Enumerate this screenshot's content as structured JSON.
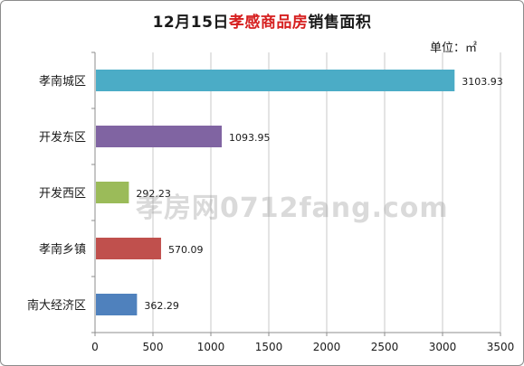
{
  "title_prefix": "12月15日",
  "title_highlight": "孝感商品房",
  "title_suffix": "销售面积",
  "unit": "单位：㎡",
  "watermark": "孝房网0712fang.com",
  "colors": {
    "grid": "#c9c9c9",
    "axis": "#8c8c8c",
    "title_highlight": "#d61f1f"
  },
  "chart_data": {
    "type": "bar",
    "orientation": "horizontal",
    "categories": [
      "孝南城区",
      "开发东区",
      "开发西区",
      "孝南乡镇",
      "南大经济区"
    ],
    "values": [
      3103.93,
      1093.95,
      292.23,
      570.09,
      362.29
    ],
    "value_labels": [
      "3103.93",
      "1093.95",
      "292.23",
      "570.09",
      "362.29"
    ],
    "bar_colors": [
      "#4bacc6",
      "#8064a2",
      "#9bbb59",
      "#c0504d",
      "#4f81bd"
    ],
    "xlim": [
      0,
      3500
    ],
    "xticks": [
      0,
      500,
      1000,
      1500,
      2000,
      2500,
      3000,
      3500
    ],
    "grid": "vertical",
    "legend": "none"
  }
}
